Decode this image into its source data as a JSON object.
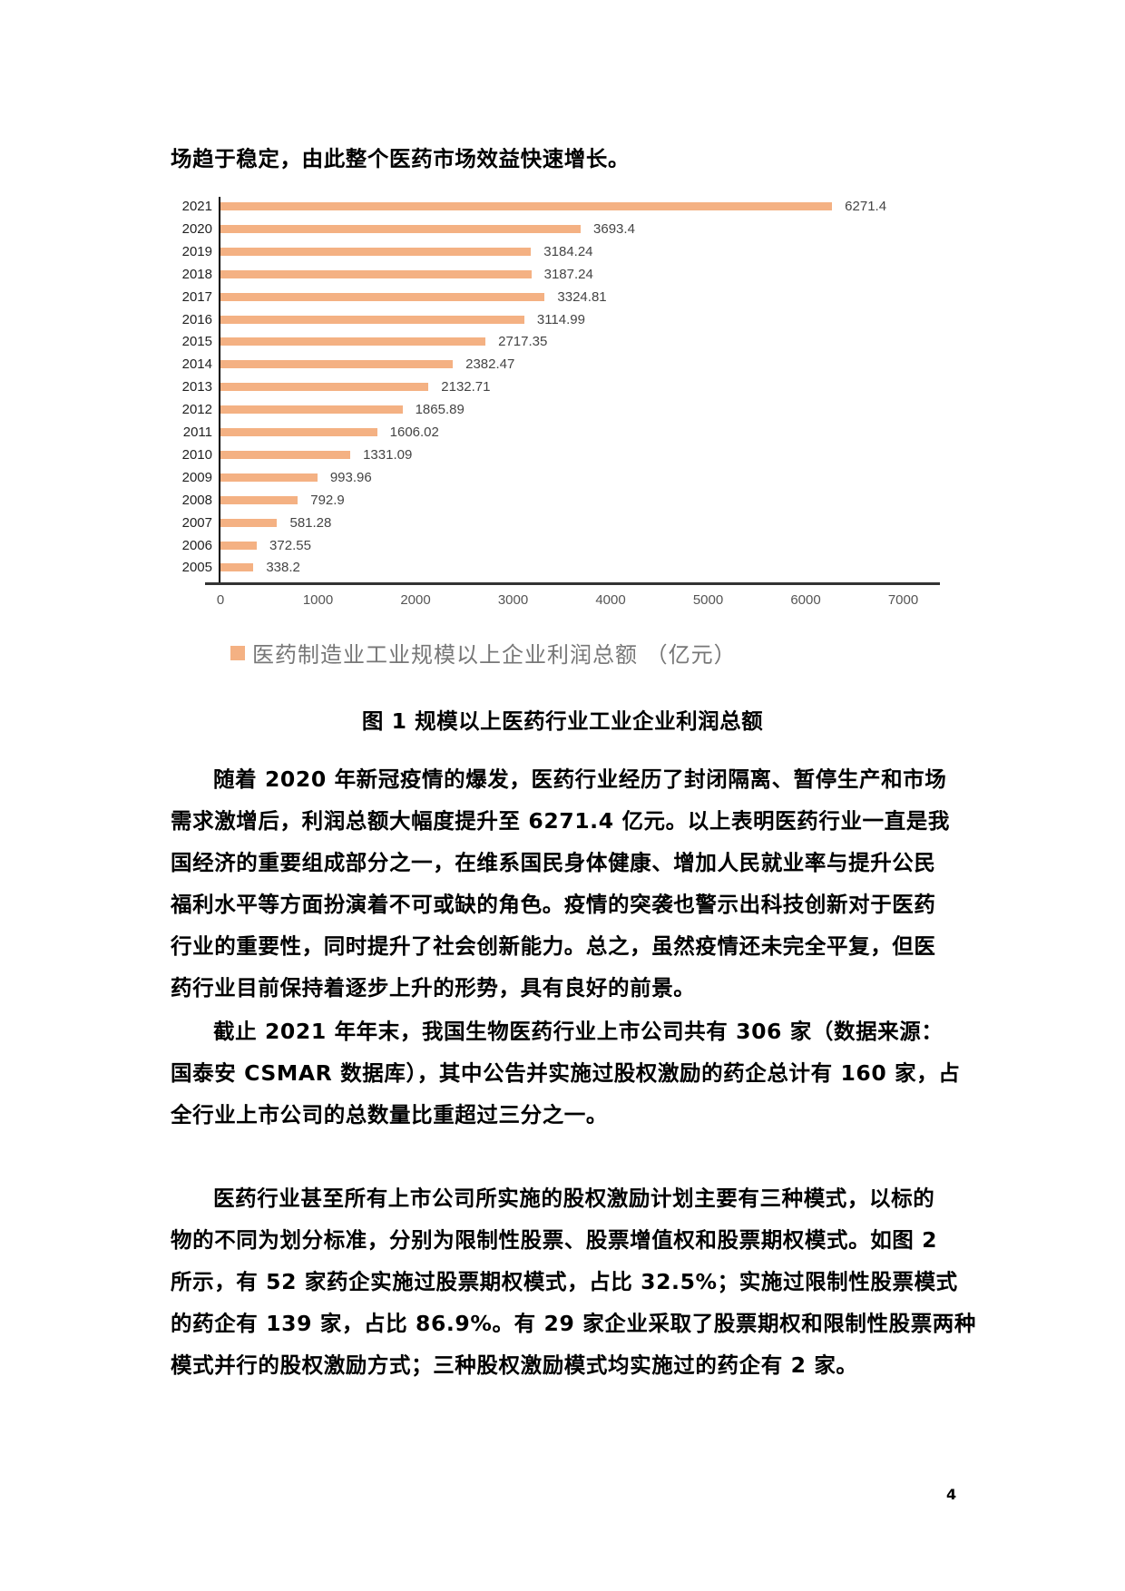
{
  "intro_line": "场趋于稳定，由此整个医药市场效益快速增长。",
  "chart_data": {
    "type": "bar",
    "orientation": "horizontal",
    "categories": [
      "2021",
      "2020",
      "2019",
      "2018",
      "2017",
      "2016",
      "2015",
      "2014",
      "2013",
      "2012",
      "2011",
      "2010",
      "2009",
      "2008",
      "2007",
      "2006",
      "2005"
    ],
    "values": [
      6271.4,
      3693.4,
      3184.24,
      3187.24,
      3324.81,
      3114.99,
      2717.35,
      2382.47,
      2132.71,
      1865.89,
      1606.02,
      1331.09,
      993.96,
      792.9,
      581.28,
      372.55,
      338.2
    ],
    "value_labels": [
      "6271.4",
      "3693.4",
      "3184.24",
      "3187.24",
      "3324.81",
      "3114.99",
      "2717.35",
      "2382.47",
      "2132.71",
      "1865.89",
      "1606.02",
      "1331.09",
      "993.96",
      "792.9",
      "581.28",
      "372.55",
      "338.2"
    ],
    "series": [
      {
        "name": "医药制造业工业规模以上企业利润总额（亿元）",
        "color": "#F4B183"
      }
    ],
    "xlabel": "",
    "ylabel": "",
    "xlim": [
      0,
      7000
    ],
    "x_ticks": [
      "0",
      "1000",
      "2000",
      "3000",
      "4000",
      "5000",
      "6000",
      "7000"
    ],
    "grid": false,
    "legend_position": "bottom",
    "legend": "医药制造业工业规模以上企业利润总额 （亿元）"
  },
  "figure_caption": "图 1  规模以上医药行业工业企业利润总额",
  "paragraphs": [
    {
      "lines": [
        "随着 2020 年新冠疫情的爆发，医药行业经历了封闭隔离、暂停生产和市场",
        "需求激增后，利润总额大幅度提升至 6271.4 亿元。以上表明医药行业一直是我",
        "国经济的重要组成部分之一，在维系国民身体健康、增加人民就业率与提升公民",
        "福利水平等方面扮演着不可或缺的角色。疫情的突袭也警示出科技创新对于医药",
        "行业的重要性，同时提升了社会创新能力。总之，虽然疫情还未完全平复，但医",
        "药行业目前保持着逐步上升的形势，具有良好的前景。"
      ]
    },
    {
      "lines": [
        "截止 2021 年年末，我国生物医药行业上市公司共有 306 家（数据来源：",
        "国泰安 CSMAR 数据库），其中公告并实施过股权激励的药企总计有 160 家，占",
        "全行业上市公司的总数量比重超过三分之一。"
      ]
    },
    {
      "lines": [
        "医药行业甚至所有上市公司所实施的股权激励计划主要有三种模式，以标的",
        "物的不同为划分标准，分别为限制性股票、股票增值权和股票期权模式。如图 2",
        "所示，有 52 家药企实施过股票期权模式，占比 32.5%；实施过限制性股票模式",
        "的药企有 139 家，占比 86.9%。有 29 家企业采取了股票期权和限制性股票两种",
        "模式并行的股权激励方式；三种股权激励模式均实施过的药企有 2 家。"
      ]
    }
  ],
  "page_number": "4"
}
